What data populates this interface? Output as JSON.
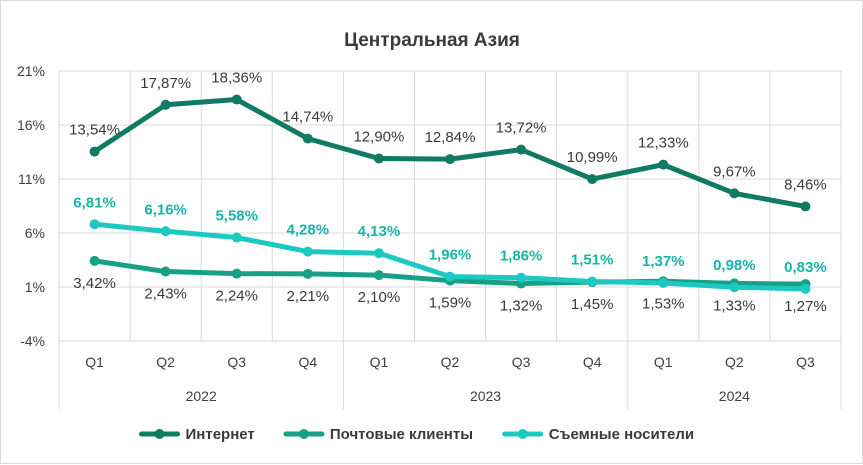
{
  "chart_data": {
    "type": "line",
    "title": "Центральная Азия",
    "y_ticks": [
      "21%",
      "16%",
      "11%",
      "6%",
      "1%",
      "-4%"
    ],
    "ylim": [
      -4,
      21
    ],
    "y_unit": "%",
    "categories": [
      "Q1",
      "Q2",
      "Q3",
      "Q4",
      "Q1",
      "Q2",
      "Q3",
      "Q4",
      "Q1",
      "Q2",
      "Q3"
    ],
    "year_groups": [
      {
        "label": "2022",
        "count": 4
      },
      {
        "label": "2023",
        "count": 4
      },
      {
        "label": "2024",
        "count": 3
      }
    ],
    "series": [
      {
        "name": "Интернет",
        "color": "#117a65",
        "values": [
          13.54,
          17.87,
          18.36,
          14.74,
          12.9,
          12.84,
          13.72,
          10.99,
          12.33,
          9.67,
          8.46
        ],
        "labels": [
          "13,54%",
          "17,87%",
          "18,36%",
          "14,74%",
          "12,90%",
          "12,84%",
          "13,72%",
          "10,99%",
          "12,33%",
          "9,67%",
          "8,46%"
        ],
        "label_position": "above",
        "label_color": "#3a3a3a"
      },
      {
        "name": "Почтовые клиенты",
        "color": "#16a085",
        "values": [
          3.42,
          2.43,
          2.24,
          2.21,
          2.1,
          1.59,
          1.32,
          1.45,
          1.53,
          1.33,
          1.27
        ],
        "labels": [
          "3,42%",
          "2,43%",
          "2,24%",
          "2,21%",
          "2,10%",
          "1,59%",
          "1,32%",
          "1,45%",
          "1,53%",
          "1,33%",
          "1,27%"
        ],
        "label_position": "below",
        "label_color": "#3a3a3a"
      },
      {
        "name": "Съемные носители",
        "color": "#1cc8c0",
        "values": [
          6.81,
          6.16,
          5.58,
          4.28,
          4.13,
          1.96,
          1.86,
          1.51,
          1.37,
          0.98,
          0.83
        ],
        "labels": [
          "6,81%",
          "6,16%",
          "5,58%",
          "4,28%",
          "4,13%",
          "1,96%",
          "1,86%",
          "1,51%",
          "1,37%",
          "0,98%",
          "0,83%"
        ],
        "label_position": "above",
        "label_color": "#17b5a8"
      }
    ],
    "grid": true,
    "legend": "bottom"
  }
}
